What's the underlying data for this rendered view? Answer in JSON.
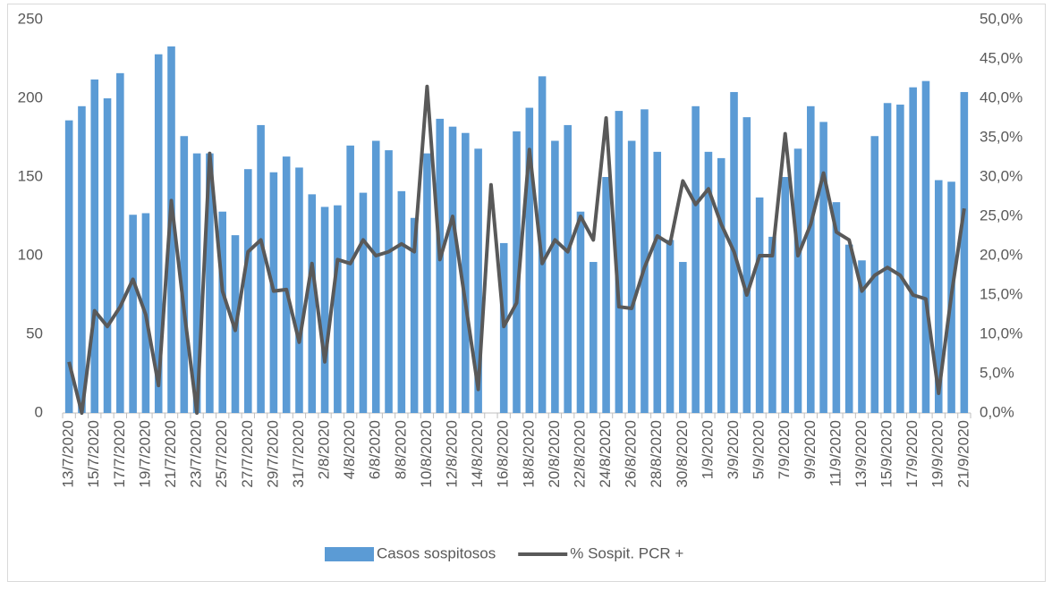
{
  "chart_data": {
    "type": "combo",
    "categories": [
      "13/7/2020",
      null,
      "15/7/2020",
      null,
      "17/7/2020",
      null,
      "19/7/2020",
      null,
      "21/7/2020",
      null,
      "23/7/2020",
      null,
      "25/7/2020",
      null,
      "27/7/2020",
      null,
      "29/7/2020",
      null,
      "31/7/2020",
      null,
      "2/8/2020",
      null,
      "4/8/2020",
      null,
      "6/8/2020",
      null,
      "8/8/2020",
      null,
      "10/8/2020",
      null,
      "12/8/2020",
      null,
      "14/8/2020",
      null,
      "16/8/2020",
      null,
      "18/8/2020",
      null,
      "20/8/2020",
      null,
      "22/8/2020",
      null,
      "24/8/2020",
      null,
      "26/8/2020",
      null,
      "28/8/2020",
      null,
      "30/8/2020",
      null,
      "1/9/2020",
      null,
      "3/9/2020",
      null,
      "5/9/2020",
      null,
      "7/9/2020",
      null,
      "9/9/2020",
      null,
      "11/9/2020",
      null,
      "13/9/2020",
      null,
      "15/9/2020",
      null,
      "17/9/2020",
      null,
      "19/9/2020",
      null,
      "21/9/2020"
    ],
    "series": [
      {
        "name": "Casos sospitosos",
        "type": "bar",
        "color": "#5b9bd5",
        "values": [
          186,
          195,
          212,
          200,
          216,
          126,
          127,
          228,
          233,
          176,
          165,
          165,
          128,
          113,
          155,
          183,
          153,
          163,
          156,
          139,
          131,
          132,
          170,
          140,
          173,
          167,
          141,
          124,
          165,
          187,
          182,
          178,
          168,
          0,
          108,
          179,
          194,
          214,
          173,
          183,
          128,
          96,
          150,
          192,
          173,
          193,
          166,
          110,
          96,
          195,
          166,
          162,
          204,
          188,
          137,
          112,
          150,
          168,
          195,
          185,
          134,
          107,
          97,
          176,
          197,
          196,
          207,
          211,
          148,
          147,
          204
        ]
      },
      {
        "name": "% Sospit. PCR +",
        "type": "line",
        "axis": "y2",
        "color": "#595959",
        "values": [
          6.5,
          0,
          13,
          11,
          13.5,
          17,
          12.5,
          3.5,
          27,
          13,
          0,
          33,
          15.5,
          10.5,
          20.5,
          22,
          15.5,
          15.7,
          9,
          19,
          6.5,
          19.5,
          19,
          22,
          20,
          20.5,
          21.5,
          20.5,
          41.5,
          19.5,
          25,
          14,
          3,
          29,
          11,
          14,
          33.5,
          19,
          22,
          20.5,
          25,
          22,
          37.5,
          13.5,
          13.3,
          18.5,
          22.5,
          21.5,
          29.5,
          26.5,
          28.5,
          24,
          20.5,
          15,
          20,
          20,
          35.5,
          20,
          24,
          30.5,
          23,
          22,
          15.5,
          17.5,
          18.5,
          17.5,
          15,
          14.5,
          2.5,
          15,
          26
        ]
      }
    ],
    "ylim": [
      0,
      250
    ],
    "yticks": [
      0,
      50,
      100,
      150,
      200,
      250
    ],
    "y2lim": [
      0,
      50
    ],
    "y2ticks": [
      {
        "value": 0,
        "label": "0,0%"
      },
      {
        "value": 5,
        "label": "5,0%"
      },
      {
        "value": 10,
        "label": "10,0%"
      },
      {
        "value": 15,
        "label": "15,0%"
      },
      {
        "value": 20,
        "label": "20,0%"
      },
      {
        "value": 25,
        "label": "25,0%"
      },
      {
        "value": 30,
        "label": "30,0%"
      },
      {
        "value": 35,
        "label": "35,0%"
      },
      {
        "value": 40,
        "label": "40,0%"
      },
      {
        "value": 45,
        "label": "45,0%"
      },
      {
        "value": 50,
        "label": "50,0%"
      }
    ],
    "grid": false,
    "legend": "bottom"
  }
}
